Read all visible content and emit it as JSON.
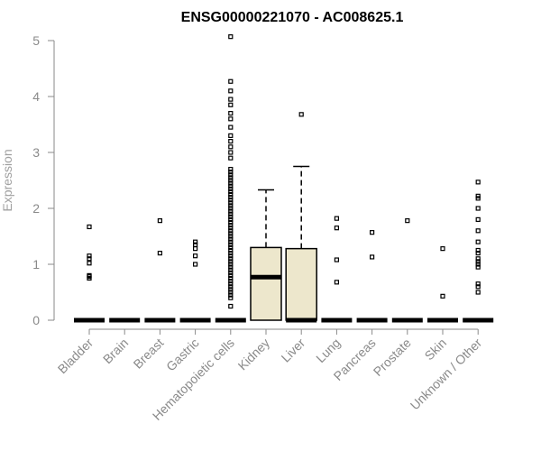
{
  "chart_data": {
    "type": "box",
    "title": "ENSG00000221070 - AC008625.1",
    "ylabel": "Expression",
    "ylim": [
      0,
      5
    ],
    "yticks": [
      0,
      1,
      2,
      3,
      4,
      5
    ],
    "box_fill": "#ede7cc",
    "categories": [
      "Bladder",
      "Brain",
      "Breast",
      "Gastric",
      "Hematopoietic cells",
      "Kidney",
      "Liver",
      "Lung",
      "Pancreas",
      "Prostate",
      "Skin",
      "Unknown / Other"
    ],
    "boxes": [
      {
        "q1": 0,
        "median": 0,
        "q3": 0,
        "whisker_low": 0,
        "whisker_high": 0,
        "outliers": [
          0.75,
          0.78,
          0.8,
          1.02,
          1.1,
          1.15,
          1.67
        ]
      },
      {
        "q1": 0,
        "median": 0,
        "q3": 0,
        "whisker_low": 0,
        "whisker_high": 0,
        "outliers": []
      },
      {
        "q1": 0,
        "median": 0,
        "q3": 0,
        "whisker_low": 0,
        "whisker_high": 0,
        "outliers": [
          1.2,
          1.78
        ]
      },
      {
        "q1": 0,
        "median": 0,
        "q3": 0,
        "whisker_low": 0,
        "whisker_high": 0,
        "outliers": [
          1.0,
          1.15,
          1.28,
          1.35,
          1.4
        ]
      },
      {
        "q1": 0,
        "median": 0,
        "q3": 0,
        "whisker_low": 0,
        "whisker_high": 0,
        "outliers": [
          0.25,
          0.4,
          0.45,
          0.5,
          0.55,
          0.6,
          0.65,
          0.7,
          0.75,
          0.8,
          0.85,
          0.9,
          0.95,
          1.0,
          1.05,
          1.1,
          1.15,
          1.2,
          1.25,
          1.3,
          1.35,
          1.4,
          1.45,
          1.5,
          1.55,
          1.6,
          1.65,
          1.7,
          1.75,
          1.8,
          1.85,
          1.9,
          1.95,
          2.0,
          2.05,
          2.1,
          2.15,
          2.2,
          2.25,
          2.3,
          2.35,
          2.4,
          2.45,
          2.5,
          2.55,
          2.6,
          2.65,
          2.7,
          2.9,
          3.0,
          3.1,
          3.2,
          3.3,
          3.45,
          3.6,
          3.7,
          3.85,
          3.95,
          4.1,
          4.27,
          5.07
        ]
      },
      {
        "q1": 0,
        "median": 0.77,
        "q3": 1.3,
        "whisker_low": 0,
        "whisker_high": 2.33,
        "outliers": []
      },
      {
        "q1": 0,
        "median": 0,
        "q3": 1.28,
        "whisker_low": 0,
        "whisker_high": 2.75,
        "outliers": [
          3.68
        ]
      },
      {
        "q1": 0,
        "median": 0,
        "q3": 0,
        "whisker_low": 0,
        "whisker_high": 0,
        "outliers": [
          0.68,
          1.08,
          1.65,
          1.82
        ]
      },
      {
        "q1": 0,
        "median": 0,
        "q3": 0,
        "whisker_low": 0,
        "whisker_high": 0,
        "outliers": [
          1.13,
          1.57
        ]
      },
      {
        "q1": 0,
        "median": 0,
        "q3": 0,
        "whisker_low": 0,
        "whisker_high": 0,
        "outliers": [
          1.78
        ]
      },
      {
        "q1": 0,
        "median": 0,
        "q3": 0,
        "whisker_low": 0,
        "whisker_high": 0,
        "outliers": [
          0.43,
          1.28
        ]
      },
      {
        "q1": 0,
        "median": 0,
        "q3": 0,
        "whisker_low": 0,
        "whisker_high": 0,
        "outliers": [
          0.5,
          0.6,
          0.65,
          0.95,
          1.0,
          1.05,
          1.1,
          1.2,
          1.25,
          1.4,
          1.6,
          1.8,
          2.0,
          2.18,
          2.22,
          2.47
        ]
      }
    ]
  }
}
